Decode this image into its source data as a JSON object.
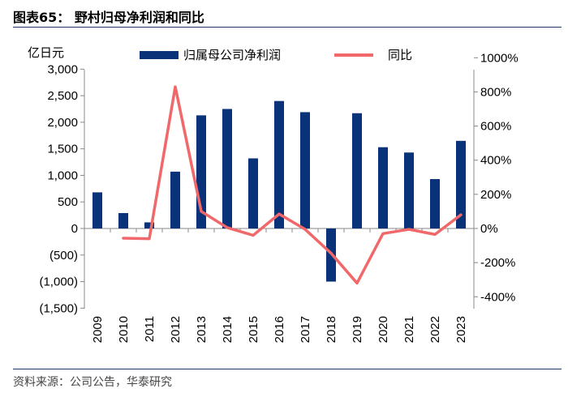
{
  "title": "图表65：   野村归母净利润和同比",
  "source": "资料来源：公司公告，华泰研究",
  "colors": {
    "bar": "#0a3278",
    "line": "#f0686a",
    "rule": "#1f3864"
  },
  "chart_data": {
    "type": "bar+line",
    "categories": [
      "2009",
      "2010",
      "2011",
      "2012",
      "2013",
      "2014",
      "2015",
      "2016",
      "2017",
      "2018",
      "2019",
      "2020",
      "2021",
      "2022",
      "2023"
    ],
    "series": [
      {
        "name": "归属母公司净利润",
        "type": "bar",
        "axis": "left",
        "values": [
          680,
          290,
          115,
          1070,
          2130,
          2250,
          1320,
          2400,
          2190,
          -1000,
          2170,
          1530,
          1430,
          930,
          1650
        ]
      },
      {
        "name": "同比",
        "type": "line",
        "axis": "right",
        "unit": "%",
        "values": [
          null,
          -57,
          -60,
          830,
          100,
          5,
          -40,
          85,
          -5,
          -145,
          -320,
          -30,
          -5,
          -35,
          80
        ]
      }
    ],
    "y_left": {
      "unit_label": "亿日元",
      "min": -1500,
      "max": 3000,
      "ticks": [
        3000,
        2500,
        2000,
        1500,
        1000,
        500,
        0,
        -500,
        -1000,
        -1500
      ],
      "tick_labels": [
        "3,000",
        "2,500",
        "2,000",
        "1,500",
        "1,000",
        "500",
        "0",
        "(500)",
        "(1,000)",
        "(1,500)"
      ]
    },
    "y_right": {
      "min": -400,
      "max": 1000,
      "ticks": [
        1000,
        800,
        600,
        400,
        200,
        0,
        -200,
        -400
      ],
      "tick_labels": [
        "1000%",
        "800%",
        "600%",
        "400%",
        "200%",
        "0%",
        "-200%",
        "-400%"
      ]
    },
    "legend": {
      "position": "top",
      "labels": [
        "归属母公司净利润",
        "同比"
      ]
    },
    "grid": false
  }
}
